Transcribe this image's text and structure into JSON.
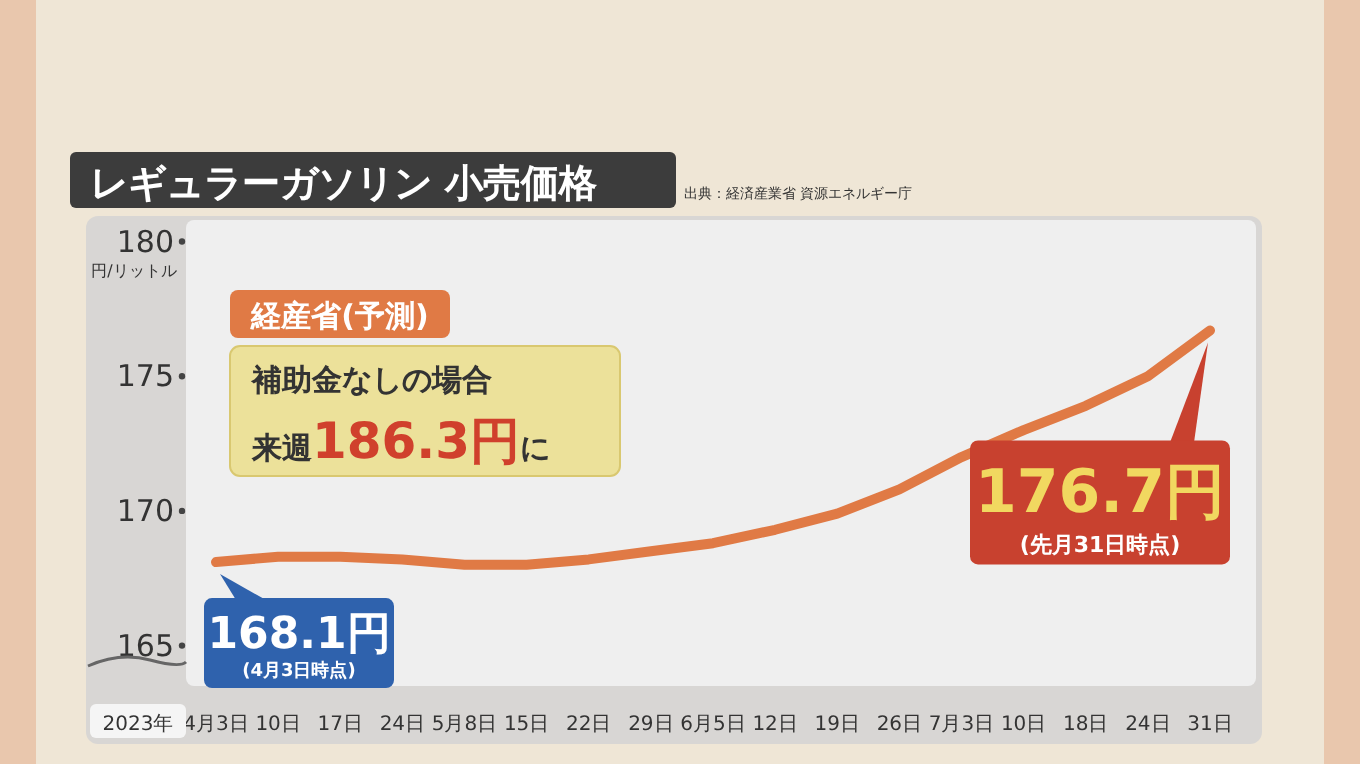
{
  "chart_data": {
    "type": "line",
    "title": "レギュラーガソリン 小売価格",
    "subtitle": "出典：経済産業省 資源エネルギー庁",
    "ylabel": "円/リットル",
    "categories": [
      "4月3日",
      "10日",
      "17日",
      "24日",
      "5月8日",
      "15日",
      "22日",
      "29日",
      "6月5日",
      "12日",
      "19日",
      "26日",
      "7月3日",
      "10日",
      "18日",
      "24日",
      "31日"
    ],
    "series": [
      {
        "color": "#e07a45",
        "values": [
          168.1,
          168.3,
          168.3,
          168.2,
          168.0,
          168.0,
          168.2,
          168.5,
          168.8,
          169.3,
          169.9,
          170.8,
          172.0,
          173.0,
          173.9,
          175.0,
          176.7
        ],
        "value_labels": [
          "168.1円",
          null,
          null,
          null,
          null,
          null,
          null,
          null,
          null,
          null,
          null,
          null,
          null,
          null,
          null,
          null,
          "176.7円"
        ]
      }
    ],
    "ylim": [
      163.5,
      180.8
    ],
    "yticks": [
      165,
      170,
      175,
      180
    ],
    "annotations": [
      "2023年",
      "経産省(予測)",
      "補助金なしの場合",
      "来週**186.3円**に",
      "(4月3日時点)",
      "(先月31日時点)"
    ]
  }
}
